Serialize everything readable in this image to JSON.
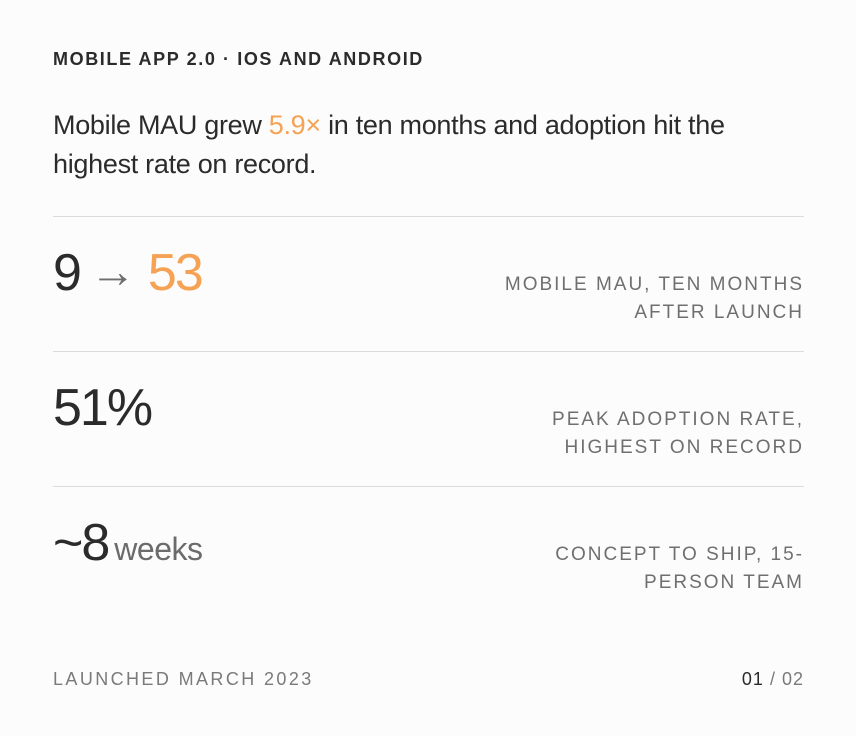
{
  "eyebrow": "MOBILE APP 2.0 · IOS AND ANDROID",
  "headline": {
    "before": "Mobile MAU grew ",
    "highlight": "5.9×",
    "after": " in ten months and adoption hit the highest rate on record."
  },
  "stats": [
    {
      "from": "9",
      "arrow": "→",
      "to": "53",
      "description": "MOBILE MAU, TEN MONTHS AFTER LAUNCH"
    },
    {
      "value": "51%",
      "description": "PEAK ADOPTION RATE, HIGHEST ON RECORD"
    },
    {
      "value": "~8",
      "unit": "weeks",
      "description": "CONCEPT TO SHIP, 15-PERSON TEAM"
    }
  ],
  "footer": {
    "launched": "LAUNCHED MARCH 2023",
    "page_current": "01",
    "page_separator": " / ",
    "page_total": "02"
  },
  "colors": {
    "accent": "#f5a254",
    "text": "#2b2b2b",
    "muted": "#6f6f6f",
    "rule": "#dcdcdc"
  }
}
